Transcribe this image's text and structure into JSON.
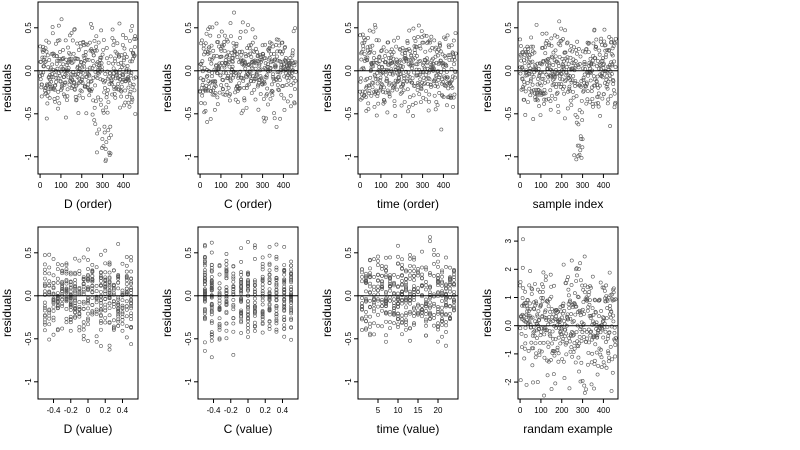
{
  "chart_data": [
    {
      "type": "scatter",
      "xlabel": "D (order)",
      "ylabel": "residuals",
      "xlim": [
        -10,
        470
      ],
      "ylim": [
        -1.2,
        0.8
      ],
      "xticks": [
        0,
        100,
        200,
        300,
        400
      ],
      "yticks": [
        -1.0,
        -0.5,
        0.0,
        0.5
      ],
      "hline": 0,
      "gen": {
        "kind": "order",
        "n": 460,
        "seed": 11,
        "spread": 0.22,
        "lowcluster": [
          260,
          340
        ]
      }
    },
    {
      "type": "scatter",
      "xlabel": "C (order)",
      "ylabel": "residuals",
      "xlim": [
        -10,
        470
      ],
      "ylim": [
        -1.2,
        0.8
      ],
      "xticks": [
        0,
        100,
        200,
        300,
        400
      ],
      "yticks": [
        -1.0,
        -0.5,
        0.0,
        0.5
      ],
      "hline": 0,
      "gen": {
        "kind": "order",
        "n": 460,
        "seed": 23,
        "spread": 0.22,
        "lowcluster": null
      }
    },
    {
      "type": "scatter",
      "xlabel": "time (order)",
      "ylabel": "residuals",
      "xlim": [
        -10,
        470
      ],
      "ylim": [
        -1.2,
        0.8
      ],
      "xticks": [
        0,
        100,
        200,
        300,
        400
      ],
      "yticks": [
        -1.0,
        -0.5,
        0.0,
        0.5
      ],
      "hline": 0,
      "gen": {
        "kind": "order",
        "n": 460,
        "seed": 37,
        "spread": 0.22,
        "lowcluster": null
      }
    },
    {
      "type": "scatter",
      "xlabel": "sample index",
      "ylabel": "residuals",
      "xlim": [
        -10,
        470
      ],
      "ylim": [
        -1.2,
        0.8
      ],
      "xticks": [
        0,
        100,
        200,
        300,
        400
      ],
      "yticks": [
        -1.0,
        -0.5,
        0.0,
        0.5
      ],
      "hline": 0,
      "gen": {
        "kind": "order",
        "n": 460,
        "seed": 41,
        "spread": 0.22,
        "lowcluster": [
          260,
          300
        ]
      }
    },
    {
      "type": "scatter",
      "xlabel": "D (value)",
      "ylabel": "residuals",
      "xlim": [
        -0.58,
        0.58
      ],
      "ylim": [
        -1.2,
        0.8
      ],
      "xticks": [
        -0.4,
        -0.2,
        0.0,
        0.2,
        0.4
      ],
      "yticks": [
        -1.0,
        -0.5,
        0.0,
        0.5
      ],
      "hline": 0,
      "gen": {
        "kind": "value",
        "n": 460,
        "seed": 53,
        "spread": 0.22,
        "levels": [
          -0.5,
          -0.45,
          -0.4,
          -0.35,
          -0.3,
          -0.25,
          -0.2,
          -0.15,
          -0.1,
          -0.05,
          0.0,
          0.05,
          0.1,
          0.15,
          0.2,
          0.25,
          0.3,
          0.35,
          0.4,
          0.45,
          0.5
        ]
      }
    },
    {
      "type": "scatter",
      "xlabel": "C (value)",
      "ylabel": "residuals",
      "xlim": [
        -0.58,
        0.58
      ],
      "ylim": [
        -1.2,
        0.8
      ],
      "xticks": [
        -0.4,
        -0.2,
        0.0,
        0.2,
        0.4
      ],
      "yticks": [
        -1.0,
        -0.5,
        0.0,
        0.5
      ],
      "hline": 0,
      "gen": {
        "kind": "value",
        "n": 460,
        "seed": 67,
        "spread": 0.22,
        "levels": [
          -0.5,
          -0.42,
          -0.33,
          -0.25,
          -0.17,
          -0.08,
          0.0,
          0.08,
          0.17,
          0.25,
          0.33,
          0.42,
          0.5
        ]
      }
    },
    {
      "type": "scatter",
      "xlabel": "time (value)",
      "ylabel": "residuals",
      "xlim": [
        0,
        25
      ],
      "ylim": [
        -1.2,
        0.8
      ],
      "xticks": [
        5,
        10,
        15,
        20
      ],
      "yticks": [
        -1.0,
        -0.5,
        0.0,
        0.5
      ],
      "hline": 0,
      "gen": {
        "kind": "value",
        "n": 460,
        "seed": 79,
        "spread": 0.22,
        "levels": [
          1,
          2,
          3,
          4,
          5,
          6,
          7,
          8,
          9,
          10,
          11,
          12,
          13,
          14,
          15,
          16,
          17,
          18,
          19,
          20,
          21,
          22,
          23,
          24
        ]
      }
    },
    {
      "type": "scatter",
      "xlabel": "randam example",
      "ylabel": "residuals",
      "xlim": [
        -10,
        470
      ],
      "ylim": [
        -2.6,
        3.5
      ],
      "xticks": [
        0,
        100,
        200,
        300,
        400
      ],
      "yticks": [
        -2,
        -1,
        0,
        1,
        2,
        3
      ],
      "hline": 0,
      "gen": {
        "kind": "order",
        "n": 460,
        "seed": 97,
        "spread": 1.0,
        "lowcluster": null
      }
    }
  ]
}
